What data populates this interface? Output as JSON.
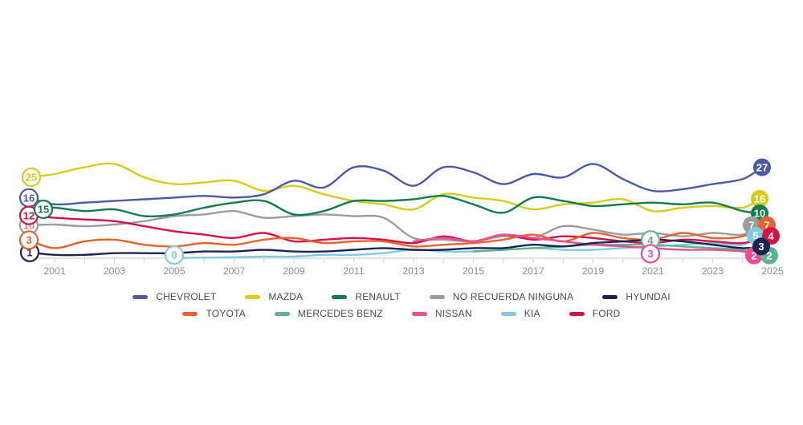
{
  "chart_data": {
    "type": "line",
    "years": [
      2001,
      2002,
      2003,
      2004,
      2005,
      2006,
      2007,
      2008,
      2009,
      2010,
      2011,
      2012,
      2013,
      2014,
      2015,
      2016,
      2017,
      2018,
      2019,
      2020,
      2021,
      2022,
      2023,
      2024,
      2025
    ],
    "x_axis": {
      "tick_labels": [
        "2001",
        "2003",
        "2005",
        "2007",
        "2009",
        "2011",
        "2013",
        "2015",
        "2017",
        "2019",
        "2021",
        "2023",
        "2025"
      ],
      "axis_color": "#d8d8d8",
      "tick_label_color": "#8f8f8f"
    },
    "ylim": [
      0,
      30
    ],
    "grid": false,
    "series": [
      {
        "id": "no_recuerda",
        "name": "NO RECUERDA NINGUNA",
        "color": "#9c9c9c",
        "values": [
          10,
          9.5,
          10,
          11,
          12.5,
          13,
          14,
          12,
          12.5,
          13,
          12.5,
          12,
          6,
          5.5,
          5,
          6.5,
          6,
          9.5,
          8.5,
          7,
          7.5,
          6.5,
          7.5,
          7,
          7
        ]
      },
      {
        "id": "kia",
        "name": "KIA",
        "color": "#82cbdf",
        "values": [
          null,
          null,
          null,
          null,
          0,
          0.2,
          0.3,
          0.5,
          0.5,
          1,
          1,
          1.5,
          2.5,
          2,
          2,
          2.5,
          3,
          2.5,
          2.5,
          3,
          3.5,
          4,
          4.5,
          4,
          5
        ]
      },
      {
        "id": "mercedes",
        "name": "MERCEDES BENZ",
        "color": "#60b48d",
        "values": [
          null,
          null,
          null,
          null,
          null,
          null,
          null,
          null,
          null,
          null,
          null,
          null,
          null,
          null,
          2,
          2.5,
          3,
          3.5,
          4,
          4,
          4,
          3.5,
          3,
          2.5,
          2
        ]
      },
      {
        "id": "ford",
        "name": "FORD",
        "color": "#d51245",
        "values": [
          12,
          11.5,
          11,
          9.5,
          8,
          7,
          6,
          7.5,
          5,
          5.5,
          6,
          5.5,
          4.5,
          6.5,
          5,
          7,
          5.5,
          6.5,
          6,
          5,
          4.5,
          5.5,
          5,
          4.5,
          4
        ]
      },
      {
        "id": "toyota",
        "name": "TOYOTA",
        "color": "#e7632e",
        "values": [
          3,
          5,
          5.5,
          4,
          3.5,
          4.5,
          4,
          5.5,
          6,
          4.5,
          5,
          5,
          3.5,
          4,
          4.5,
          5.5,
          7,
          5,
          7.5,
          6,
          5.5,
          7.5,
          6,
          6.5,
          7
        ]
      },
      {
        "id": "nissan",
        "name": "NISSAN",
        "color": "#ea4e94",
        "values": [
          null,
          null,
          null,
          null,
          null,
          null,
          null,
          null,
          null,
          null,
          null,
          null,
          5,
          6,
          5,
          7,
          6,
          5,
          4,
          3.5,
          3,
          2.5,
          2.5,
          2,
          2
        ]
      },
      {
        "id": "hyundai",
        "name": "HYUNDAI",
        "color": "#1d2454",
        "values": [
          1,
          1,
          1.5,
          1.5,
          1.5,
          2,
          2,
          2.5,
          2,
          2,
          2.5,
          3,
          2.5,
          2.5,
          3,
          3,
          4,
          3.5,
          4.5,
          5,
          5.5,
          5,
          4,
          3,
          3
        ]
      },
      {
        "id": "mazda",
        "name": "MAZDA",
        "color": "#d7cb1f",
        "values": [
          25,
          27,
          28,
          24,
          22,
          22.5,
          23,
          20,
          21.5,
          19,
          17,
          16,
          14.5,
          19,
          18,
          17,
          14.5,
          16,
          16.5,
          17.5,
          14,
          15,
          15.5,
          15,
          16
        ]
      },
      {
        "id": "renault",
        "name": "RENAULT",
        "color": "#127c4c",
        "values": [
          15,
          14,
          14.5,
          12.5,
          13,
          15,
          16.5,
          17,
          13,
          14,
          17,
          17,
          17.5,
          18.5,
          16,
          13.5,
          18,
          17,
          15.5,
          16,
          16.5,
          16,
          16.5,
          14,
          10
        ]
      },
      {
        "id": "chevrolet",
        "name": "CHEVROLET",
        "color": "#4d59a6",
        "values": [
          16,
          16.5,
          17,
          17.5,
          18,
          18.5,
          18,
          19,
          23,
          21,
          27,
          26,
          21.5,
          27,
          25.5,
          22,
          25,
          24,
          28,
          23.5,
          20,
          20.5,
          22,
          23.5,
          27
        ]
      }
    ],
    "annotations": [
      {
        "series": "chevrolet",
        "kind": "start",
        "year": 2001,
        "value": 16,
        "label": "16",
        "style": "outline"
      },
      {
        "series": "no_recuerda",
        "kind": "start",
        "year": 2001,
        "value": 10,
        "label": "10",
        "style": "outline"
      },
      {
        "series": "ford",
        "kind": "start",
        "year": 2001,
        "value": 12,
        "label": "12",
        "style": "outline"
      },
      {
        "series": "renault",
        "kind": "start",
        "year": 2001,
        "value": 15,
        "label": "15",
        "style": "outline"
      },
      {
        "series": "hyundai",
        "kind": "start",
        "year": 2001,
        "value": 1,
        "label": "1",
        "style": "outline"
      },
      {
        "series": "toyota",
        "kind": "start",
        "year": 2001,
        "value": 3,
        "label": "3",
        "style": "outline"
      },
      {
        "series": "mazda",
        "kind": "start",
        "year": 2001,
        "value": 25,
        "label": "25",
        "style": "outline"
      },
      {
        "series": "kia",
        "kind": "mid",
        "year": 2005,
        "value": 0,
        "label": "0",
        "style": "outline"
      },
      {
        "series": "mercedes",
        "kind": "mid",
        "year": 2021,
        "value": 4,
        "label": "4",
        "style": "outline"
      },
      {
        "series": "nissan",
        "kind": "mid",
        "year": 2021,
        "value": 3,
        "label": "3",
        "style": "outline"
      },
      {
        "series": "mazda",
        "kind": "end",
        "year": 2025,
        "value": 16,
        "label": "16",
        "style": "filled"
      },
      {
        "series": "renault",
        "kind": "end",
        "year": 2025,
        "value": 10,
        "label": "10",
        "style": "filled"
      },
      {
        "series": "no_recuerda",
        "kind": "end",
        "year": 2025,
        "value": 7,
        "label": "7",
        "style": "filled"
      },
      {
        "series": "toyota",
        "kind": "end",
        "year": 2025,
        "value": 7,
        "label": "7",
        "style": "filled"
      },
      {
        "series": "kia",
        "kind": "end",
        "year": 2025,
        "value": 5,
        "label": "5",
        "style": "filled"
      },
      {
        "series": "ford",
        "kind": "end",
        "year": 2025,
        "value": 4,
        "label": "4",
        "style": "filled"
      },
      {
        "series": "nissan",
        "kind": "end",
        "year": 2025,
        "value": 2,
        "label": "2",
        "style": "filled"
      },
      {
        "series": "mercedes",
        "kind": "end",
        "year": 2025,
        "value": 2,
        "label": "2",
        "style": "filled"
      },
      {
        "series": "hyundai",
        "kind": "end",
        "year": 2025,
        "value": 3,
        "label": "3",
        "style": "filled"
      },
      {
        "series": "chevrolet",
        "kind": "end",
        "year": 2025,
        "value": 27,
        "label": "27",
        "style": "filled"
      }
    ]
  },
  "legend": {
    "rows": [
      {
        "items": [
          {
            "label": "CHEVROLET",
            "color": "#4d59a6"
          },
          {
            "label": "MAZDA",
            "color": "#d7cb1f"
          },
          {
            "label": "RENAULT",
            "color": "#127c4c"
          },
          {
            "label": "NO RECUERDA NINGUNA",
            "color": "#9c9c9c"
          },
          {
            "label": "HYUNDAI",
            "color": "#1d2454"
          }
        ]
      },
      {
        "items": [
          {
            "label": "TOYOTA",
            "color": "#e7632e"
          },
          {
            "label": "MERCEDES BENZ",
            "color": "#60b48d"
          },
          {
            "label": "NISSAN",
            "color": "#ea4e94"
          },
          {
            "label": "KIA",
            "color": "#82cbdf"
          },
          {
            "label": "FORD",
            "color": "#d51245"
          }
        ]
      }
    ]
  }
}
